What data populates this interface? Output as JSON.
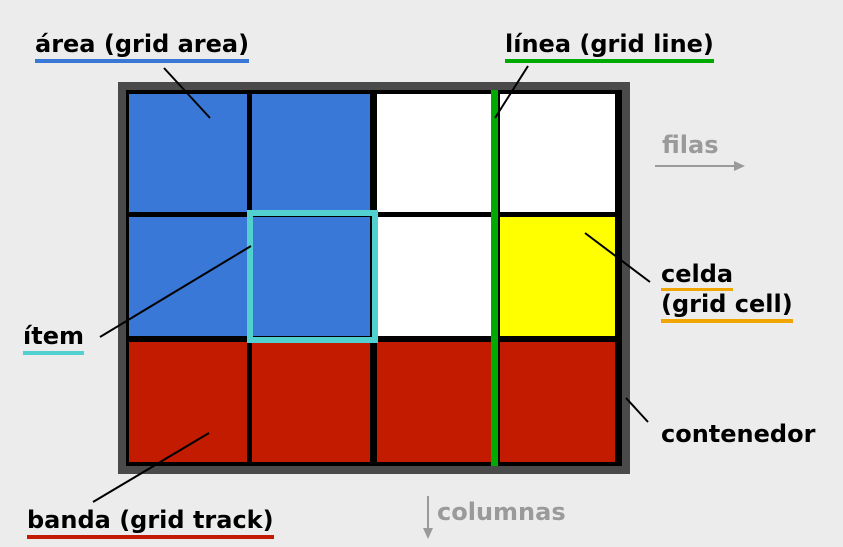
{
  "labels": {
    "area": "área (grid area)",
    "line": "línea (grid line)",
    "rows": "filas",
    "cell_1": "celda",
    "cell_2": "(grid cell)",
    "item": "ítem",
    "container": "contenedor",
    "track": "banda (grid track)",
    "columns": "columnas"
  },
  "grid": {
    "rows": 3,
    "columns": 4,
    "cells": [
      [
        "blue",
        "blue",
        "white",
        "white"
      ],
      [
        "blue",
        "blue",
        "white",
        "yellow"
      ],
      [
        "red",
        "red",
        "red",
        "red"
      ]
    ]
  },
  "colors": {
    "blue": "#3a78d8",
    "white": "#ffffff",
    "yellow": "#ffff00",
    "red": "#c21b00",
    "container_border": "#4a4a4a",
    "grid_line": "#000000",
    "highlight_line": "#00aa00",
    "item_outline": "#52d0d0",
    "area_underline": "#3a78d8",
    "line_underline": "#00aa00",
    "cell_underline": "#f0a500",
    "item_underline": "#52d0d0",
    "track_underline": "#c21b00",
    "muted": "#9a9a9a"
  }
}
